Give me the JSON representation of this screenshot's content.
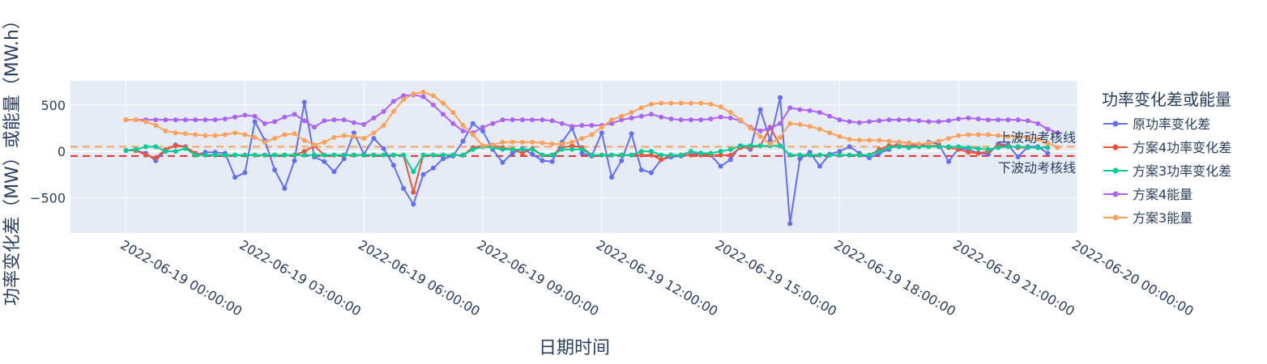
{
  "chart_data": {
    "type": "line",
    "xlabel": "日期时间",
    "ylabel": "功率变化差（MW）或能量（MW.h）",
    "legend_title": "功率变化差或能量",
    "legend_position": "right",
    "grid": true,
    "x_range": [
      "2022-06-18 22:36:00",
      "2022-06-20 00:00:00"
    ],
    "ylim": [
      -880,
      760
    ],
    "x_ticks": [
      "2022-06-19 00:00:00",
      "2022-06-19 03:00:00",
      "2022-06-19 06:00:00",
      "2022-06-19 09:00:00",
      "2022-06-19 12:00:00",
      "2022-06-19 15:00:00",
      "2022-06-19 18:00:00",
      "2022-06-19 21:00:00",
      "2022-06-20 00:00:00"
    ],
    "y_ticks": [
      {
        "value": -500,
        "label": "−500"
      },
      {
        "value": 0,
        "label": "0"
      },
      {
        "value": 500,
        "label": "500"
      }
    ],
    "x_start": "2022-06-19 00:00:00",
    "x_step_minutes": 15,
    "reference_lines": [
      {
        "label": "上波动考核线",
        "value": 50,
        "color": "#ffa15a",
        "dash": "dash"
      },
      {
        "label": "下波动考核线",
        "value": -50,
        "color": "#ef2b2b",
        "dash": "dash"
      }
    ],
    "series": [
      {
        "name": "原功率变化差",
        "color": "#636efa",
        "values": [
          10,
          10,
          -20,
          -100,
          10,
          70,
          50,
          -40,
          -10,
          -10,
          -20,
          -280,
          -230,
          320,
          120,
          -200,
          -400,
          -100,
          530,
          -60,
          -110,
          -220,
          -80,
          200,
          -30,
          140,
          30,
          -150,
          -400,
          -570,
          -250,
          -180,
          -80,
          -50,
          110,
          300,
          220,
          20,
          -120,
          -20,
          30,
          -30,
          -100,
          -110,
          100,
          250,
          -20,
          -50,
          200,
          -280,
          -100,
          190,
          -200,
          -230,
          -90,
          -60,
          -50,
          -30,
          -20,
          -40,
          -160,
          -90,
          60,
          20,
          450,
          120,
          580,
          -780,
          -80,
          -10,
          -160,
          -30,
          0,
          50,
          -20,
          -70,
          -20,
          20,
          100,
          90,
          60,
          100,
          80,
          -110,
          30,
          20,
          -20,
          -30,
          80,
          70,
          -60,
          50,
          50,
          -20
        ],
        "style": "lines+markers"
      },
      {
        "name": "方案4功率变化差",
        "color": "#ef553b",
        "values": [
          10,
          10,
          -40,
          -70,
          20,
          60,
          50,
          -20,
          -40,
          -40,
          -40,
          -40,
          -40,
          -40,
          -40,
          -40,
          -40,
          -40,
          0,
          60,
          -40,
          -40,
          -40,
          -40,
          -40,
          -40,
          -40,
          -40,
          -40,
          -440,
          -40,
          -40,
          -40,
          -40,
          -40,
          40,
          60,
          60,
          40,
          20,
          -20,
          30,
          -40,
          -40,
          40,
          60,
          40,
          -40,
          -40,
          -40,
          -40,
          -40,
          -40,
          -40,
          -90,
          -40,
          -40,
          -40,
          -40,
          -40,
          -40,
          -40,
          40,
          40,
          60,
          260,
          60,
          -40,
          -40,
          -40,
          -40,
          -40,
          -40,
          -40,
          -40,
          -40,
          20,
          60,
          60,
          60,
          60,
          60,
          60,
          40,
          20,
          -10,
          -20,
          0,
          60,
          60,
          40,
          40,
          40,
          40
        ],
        "style": "lines+markers"
      },
      {
        "name": "方案3功率变化差",
        "color": "#00cc96",
        "values": [
          10,
          20,
          50,
          50,
          0,
          0,
          30,
          -40,
          -40,
          -40,
          -40,
          -40,
          -40,
          -40,
          -40,
          -40,
          -40,
          -40,
          -40,
          -40,
          -40,
          -40,
          -40,
          -40,
          -40,
          -40,
          -40,
          -40,
          -40,
          -220,
          -40,
          -40,
          -40,
          -40,
          -40,
          20,
          50,
          40,
          20,
          20,
          20,
          20,
          -40,
          -40,
          20,
          20,
          20,
          -40,
          -40,
          -40,
          -40,
          -40,
          0,
          0,
          -40,
          -40,
          -40,
          0,
          -20,
          -20,
          0,
          20,
          60,
          60,
          60,
          60,
          60,
          -40,
          -40,
          -40,
          -40,
          -40,
          -40,
          -40,
          -40,
          -40,
          0,
          40,
          50,
          40,
          50,
          50,
          50,
          50,
          50,
          40,
          30,
          20,
          40,
          50,
          50,
          40,
          40,
          40
        ],
        "style": "lines+markers"
      },
      {
        "name": "方案4能量",
        "color": "#ab63fa",
        "values": [
          340,
          340,
          340,
          340,
          340,
          340,
          340,
          340,
          340,
          340,
          350,
          370,
          390,
          380,
          300,
          320,
          370,
          400,
          330,
          260,
          330,
          340,
          340,
          310,
          290,
          360,
          430,
          540,
          600,
          610,
          590,
          500,
          400,
          300,
          220,
          200,
          260,
          300,
          340,
          340,
          340,
          340,
          340,
          330,
          300,
          270,
          280,
          280,
          280,
          300,
          340,
          360,
          380,
          400,
          370,
          350,
          340,
          340,
          340,
          350,
          370,
          360,
          330,
          260,
          220,
          250,
          300,
          470,
          450,
          440,
          420,
          380,
          340,
          320,
          310,
          320,
          330,
          340,
          340,
          340,
          330,
          320,
          320,
          330,
          350,
          360,
          350,
          340,
          340,
          340,
          340,
          330,
          300,
          240,
          200
        ],
        "style": "lines+markers"
      },
      {
        "name": "方案3能量",
        "color": "#ffa15a",
        "values": [
          340,
          340,
          320,
          280,
          220,
          200,
          190,
          180,
          170,
          170,
          180,
          200,
          180,
          150,
          100,
          140,
          180,
          190,
          120,
          70,
          100,
          150,
          170,
          160,
          140,
          200,
          280,
          430,
          560,
          620,
          640,
          600,
          520,
          420,
          280,
          180,
          60,
          70,
          100,
          100,
          100,
          100,
          90,
          80,
          80,
          100,
          140,
          180,
          260,
          340,
          380,
          420,
          470,
          510,
          520,
          520,
          520,
          520,
          520,
          510,
          480,
          420,
          340,
          250,
          160,
          80,
          150,
          300,
          290,
          270,
          240,
          200,
          160,
          130,
          120,
          120,
          120,
          110,
          100,
          90,
          80,
          90,
          110,
          140,
          170,
          180,
          180,
          180,
          170,
          160,
          160,
          150,
          130,
          90,
          40
        ],
        "style": "lines+markers"
      }
    ]
  }
}
